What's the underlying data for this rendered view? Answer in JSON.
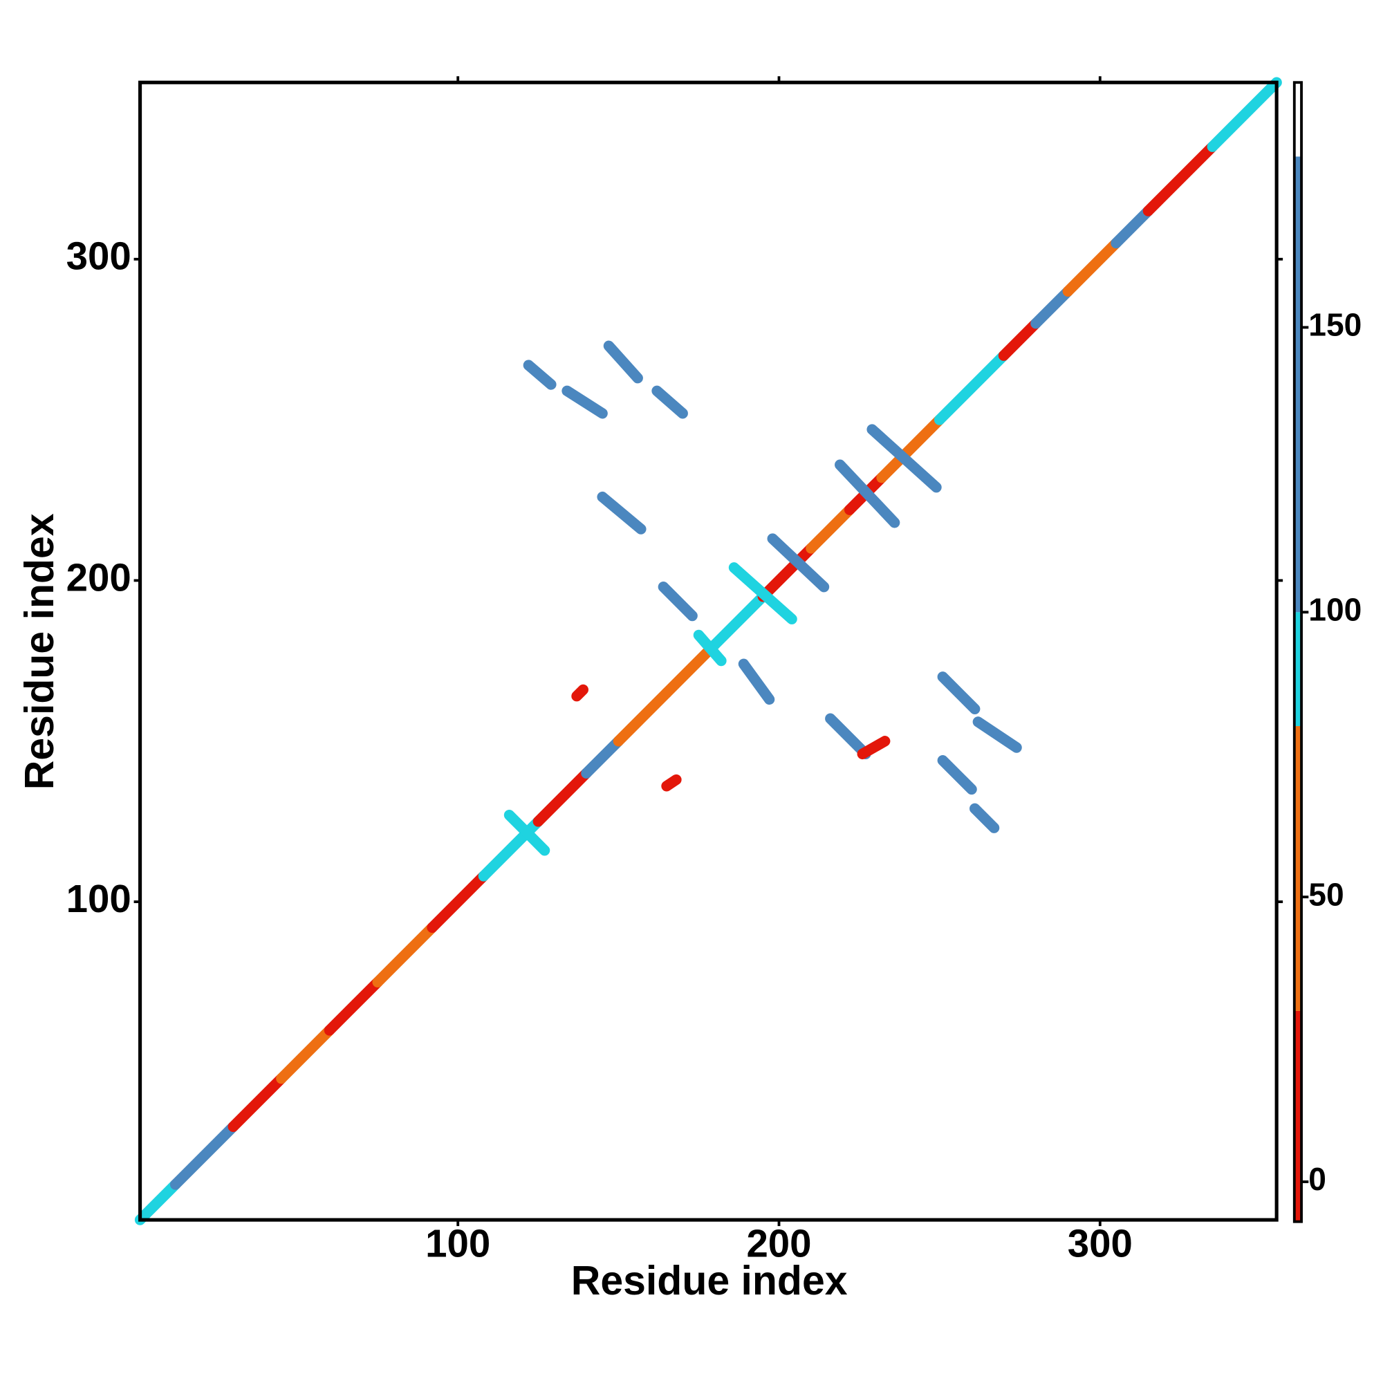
{
  "chart_data": {
    "type": "contact_map",
    "x_label": "Residue index",
    "y_label": "Residue index",
    "xlim": [
      1,
      355
    ],
    "ylim": [
      1,
      355
    ],
    "xticks": [
      100,
      200,
      300
    ],
    "yticks": [
      100,
      200,
      300
    ],
    "colorbar": {
      "lim": [
        -7,
        193
      ],
      "ticks": [
        0,
        50,
        100,
        150
      ],
      "bands": [
        {
          "range": [
            -7,
            30
          ],
          "color": "#e3170a"
        },
        {
          "range": [
            30,
            80
          ],
          "color": "#ee6f12"
        },
        {
          "range": [
            80,
            100
          ],
          "color": "#1fd3e0"
        },
        {
          "range": [
            100,
            180
          ],
          "color": "#4b87bf"
        },
        {
          "range": [
            180,
            193
          ],
          "color": "#ffffff"
        }
      ]
    },
    "contacts": [
      {
        "x": [
          1,
          12
        ],
        "y": [
          1,
          12
        ],
        "value": 90
      },
      {
        "x": [
          12,
          30
        ],
        "y": [
          12,
          30
        ],
        "value": 140
      },
      {
        "x": [
          30,
          45
        ],
        "y": [
          30,
          45
        ],
        "value": 20
      },
      {
        "x": [
          45,
          60
        ],
        "y": [
          45,
          60
        ],
        "value": 40
      },
      {
        "x": [
          60,
          75
        ],
        "y": [
          60,
          75
        ],
        "value": 10
      },
      {
        "x": [
          75,
          92
        ],
        "y": [
          75,
          92
        ],
        "value": 60
      },
      {
        "x": [
          92,
          108
        ],
        "y": [
          92,
          108
        ],
        "value": 20
      },
      {
        "x": [
          108,
          125
        ],
        "y": [
          108,
          125
        ],
        "value": 90
      },
      {
        "x": [
          125,
          140
        ],
        "y": [
          125,
          140
        ],
        "value": 10
      },
      {
        "x": [
          140,
          150
        ],
        "y": [
          140,
          150
        ],
        "value": 140
      },
      {
        "x": [
          150,
          165
        ],
        "y": [
          150,
          165
        ],
        "value": 40
      },
      {
        "x": [
          165,
          180
        ],
        "y": [
          165,
          180
        ],
        "value": 60
      },
      {
        "x": [
          180,
          195
        ],
        "y": [
          180,
          195
        ],
        "value": 90
      },
      {
        "x": [
          195,
          210
        ],
        "y": [
          195,
          210
        ],
        "value": 20
      },
      {
        "x": [
          210,
          222
        ],
        "y": [
          210,
          222
        ],
        "value": 60
      },
      {
        "x": [
          222,
          232
        ],
        "y": [
          222,
          232
        ],
        "value": -5
      },
      {
        "x": [
          232,
          250
        ],
        "y": [
          232,
          250
        ],
        "value": 40
      },
      {
        "x": [
          250,
          270
        ],
        "y": [
          250,
          270
        ],
        "value": 90
      },
      {
        "x": [
          270,
          280
        ],
        "y": [
          270,
          280
        ],
        "value": 20
      },
      {
        "x": [
          280,
          290
        ],
        "y": [
          280,
          290
        ],
        "value": 140
      },
      {
        "x": [
          290,
          305
        ],
        "y": [
          290,
          305
        ],
        "value": 60
      },
      {
        "x": [
          305,
          315
        ],
        "y": [
          305,
          315
        ],
        "value": 140
      },
      {
        "x": [
          315,
          335
        ],
        "y": [
          315,
          335
        ],
        "value": 20
      },
      {
        "x": [
          335,
          355
        ],
        "y": [
          335,
          355
        ],
        "value": 90
      },
      {
        "x": [
          122,
          129
        ],
        "y": [
          267,
          261
        ],
        "value": 140
      },
      {
        "x": [
          134,
          145
        ],
        "y": [
          259,
          252
        ],
        "value": 140
      },
      {
        "x": [
          147,
          156
        ],
        "y": [
          273,
          263
        ],
        "value": 140
      },
      {
        "x": [
          162,
          170
        ],
        "y": [
          259,
          252
        ],
        "value": 140
      },
      {
        "x": [
          145,
          157
        ],
        "y": [
          226,
          216
        ],
        "value": 140
      },
      {
        "x": [
          164,
          173
        ],
        "y": [
          198,
          189
        ],
        "value": 140
      },
      {
        "x": [
          189,
          197
        ],
        "y": [
          174,
          163
        ],
        "value": 140
      },
      {
        "x": [
          216,
          227
        ],
        "y": [
          157,
          146
        ],
        "value": 140
      },
      {
        "x": [
          251,
          261
        ],
        "y": [
          170,
          160
        ],
        "value": 140
      },
      {
        "x": [
          262,
          274
        ],
        "y": [
          156,
          148
        ],
        "value": 140
      },
      {
        "x": [
          251,
          260
        ],
        "y": [
          144,
          135
        ],
        "value": 140
      },
      {
        "x": [
          261,
          267
        ],
        "y": [
          129,
          123
        ],
        "value": 140
      },
      {
        "x": [
          198,
          214
        ],
        "y": [
          213,
          198
        ],
        "value": 140
      },
      {
        "x": [
          186,
          204
        ],
        "y": [
          204,
          188
        ],
        "value": 90
      },
      {
        "x": [
          219,
          236
        ],
        "y": [
          236,
          218
        ],
        "value": 140
      },
      {
        "x": [
          229,
          249
        ],
        "y": [
          247,
          229
        ],
        "value": 140
      },
      {
        "x": [
          116,
          127
        ],
        "y": [
          127,
          116
        ],
        "value": 90
      },
      {
        "x": [
          175,
          182
        ],
        "y": [
          183,
          175
        ],
        "value": 90
      },
      {
        "x": [
          137,
          139
        ],
        "y": [
          164,
          166
        ],
        "value": 0
      },
      {
        "x": [
          165,
          168
        ],
        "y": [
          136,
          138
        ],
        "value": 0
      },
      {
        "x": [
          226,
          233
        ],
        "y": [
          146,
          150
        ],
        "value": 10
      }
    ]
  }
}
